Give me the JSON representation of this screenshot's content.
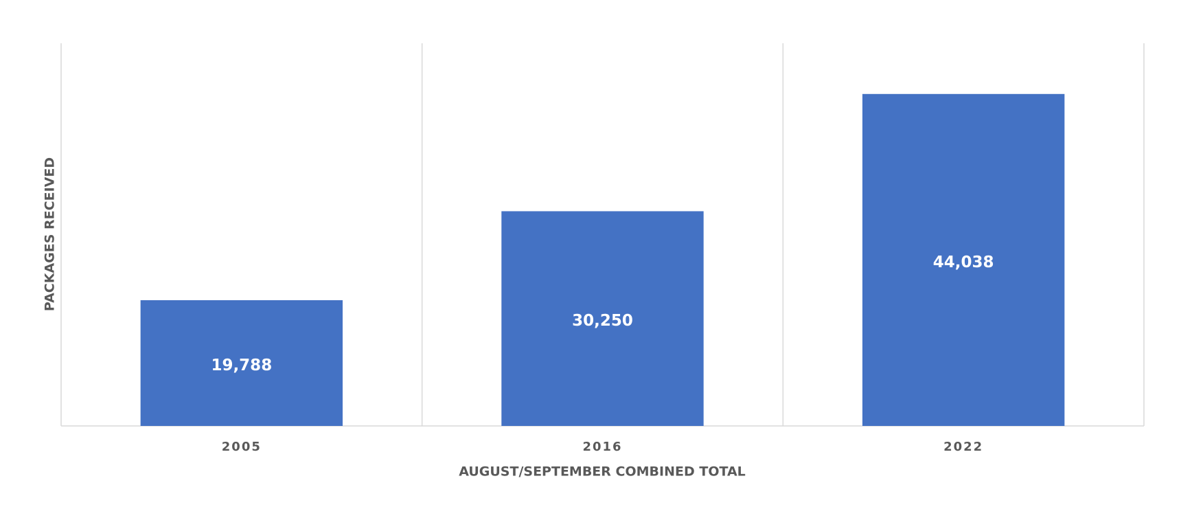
{
  "chart_data": {
    "type": "bar",
    "x_label": "AUGUST/SEPTEMBER COMBINED TOTAL",
    "y_label": "PACKAGES RECEIVED",
    "categories": [
      "2005",
      "2016",
      "2022"
    ],
    "values": [
      19788,
      30250,
      44038
    ],
    "value_labels": [
      "19,788",
      "30,250",
      "44,038"
    ],
    "color": "#4472c4",
    "ylim": [
      5000,
      50000
    ]
  }
}
